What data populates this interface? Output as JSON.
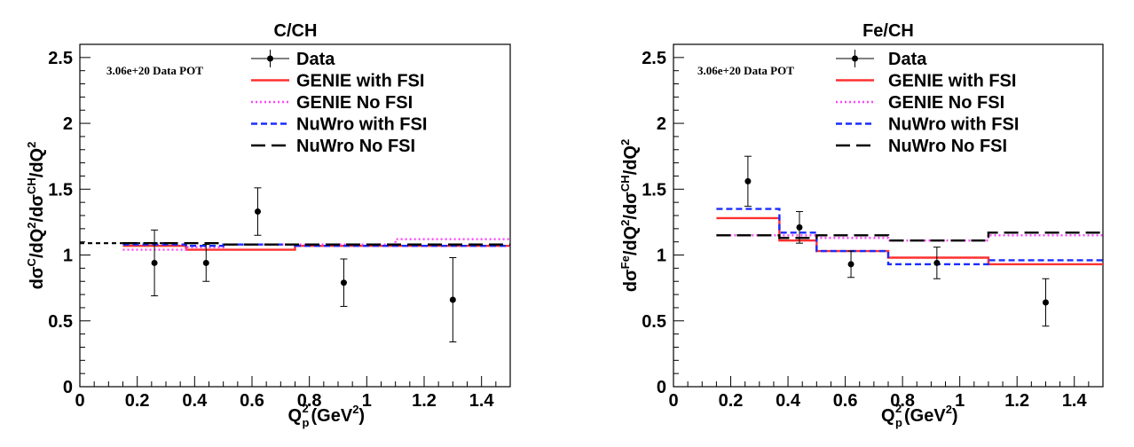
{
  "chart_data": [
    {
      "type": "line",
      "title": "C/CH",
      "ylabel_parts": [
        "d",
        "σ",
        "C",
        "/dQ",
        "2",
        "/d",
        "σ",
        "CH",
        "/dQ",
        "2"
      ],
      "xlabel_parts": [
        "Q",
        "2",
        "p",
        "(GeV",
        "2",
        ")"
      ],
      "annotation": "3.06e+20 Data POT",
      "xlim": [
        0,
        1.5
      ],
      "ylim": [
        0,
        2.6
      ],
      "xticks": [
        "0",
        "0.2",
        "0.4",
        "0.6",
        "0.8",
        "1",
        "1.2",
        "1.4"
      ],
      "yticks": [
        "0",
        "0.5",
        "1",
        "1.5",
        "2",
        "2.5"
      ],
      "legend_position": "top-right",
      "reference_line": {
        "y": 1.09,
        "x": [
          0,
          0.15
        ]
      },
      "bin_edges": [
        0.15,
        0.37,
        0.5,
        0.75,
        1.1,
        1.5
      ],
      "series": [
        {
          "name": "GENIE with FSI",
          "values": [
            1.07,
            1.04,
            1.04,
            1.07,
            1.07
          ],
          "color": "#ff3030",
          "style": "solid"
        },
        {
          "name": "GENIE No FSI",
          "values": [
            1.04,
            1.06,
            1.08,
            1.08,
            1.12
          ],
          "color": "#ff44ff",
          "style": "dot"
        },
        {
          "name": "NuWro with FSI",
          "values": [
            1.08,
            1.07,
            1.08,
            1.07,
            1.07
          ],
          "color": "#1a2cff",
          "style": "dash"
        },
        {
          "name": "NuWro No FSI",
          "values": [
            1.09,
            1.09,
            1.08,
            1.08,
            1.08
          ],
          "color": "#000000",
          "style": "longdash"
        }
      ],
      "data_points": {
        "name": "Data",
        "x": [
          0.26,
          0.44,
          0.62,
          0.92,
          1.3
        ],
        "y": [
          0.94,
          0.94,
          1.33,
          0.79,
          0.66
        ],
        "err": [
          0.25,
          0.14,
          0.18,
          0.18,
          0.32
        ]
      }
    },
    {
      "type": "line",
      "title": "Fe/CH",
      "ylabel_parts": [
        "d",
        "σ",
        "Fe",
        "/dQ",
        "2",
        "/d",
        "σ",
        "CH",
        "/dQ",
        "2"
      ],
      "xlabel_parts": [
        "Q",
        "2",
        "p",
        "(GeV",
        "2",
        ")"
      ],
      "annotation": "3.06e+20 Data POT",
      "xlim": [
        0,
        1.5
      ],
      "ylim": [
        0,
        2.6
      ],
      "xticks": [
        "0",
        "0.2",
        "0.4",
        "0.6",
        "0.8",
        "1",
        "1.2",
        "1.4"
      ],
      "yticks": [
        "0",
        "0.5",
        "1",
        "1.5",
        "2",
        "2.5"
      ],
      "legend_position": "top-right",
      "bin_edges": [
        0.15,
        0.37,
        0.5,
        0.75,
        1.1,
        1.5
      ],
      "series": [
        {
          "name": "GENIE with FSI",
          "values": [
            1.28,
            1.11,
            1.03,
            0.98,
            0.93
          ],
          "color": "#ff3030",
          "style": "solid"
        },
        {
          "name": "GENIE No FSI",
          "values": [
            1.15,
            1.15,
            1.13,
            1.11,
            1.15
          ],
          "color": "#ff44ff",
          "style": "dot"
        },
        {
          "name": "NuWro with FSI",
          "values": [
            1.35,
            1.17,
            1.03,
            0.93,
            0.96
          ],
          "color": "#1a2cff",
          "style": "dash"
        },
        {
          "name": "NuWro No FSI",
          "values": [
            1.15,
            1.13,
            1.15,
            1.11,
            1.17
          ],
          "color": "#000000",
          "style": "longdash"
        }
      ],
      "data_points": {
        "name": "Data",
        "x": [
          0.26,
          0.44,
          0.62,
          0.92,
          1.3
        ],
        "y": [
          1.56,
          1.21,
          0.93,
          0.94,
          0.64
        ],
        "err": [
          0.19,
          0.12,
          0.1,
          0.12,
          0.18
        ]
      }
    }
  ]
}
